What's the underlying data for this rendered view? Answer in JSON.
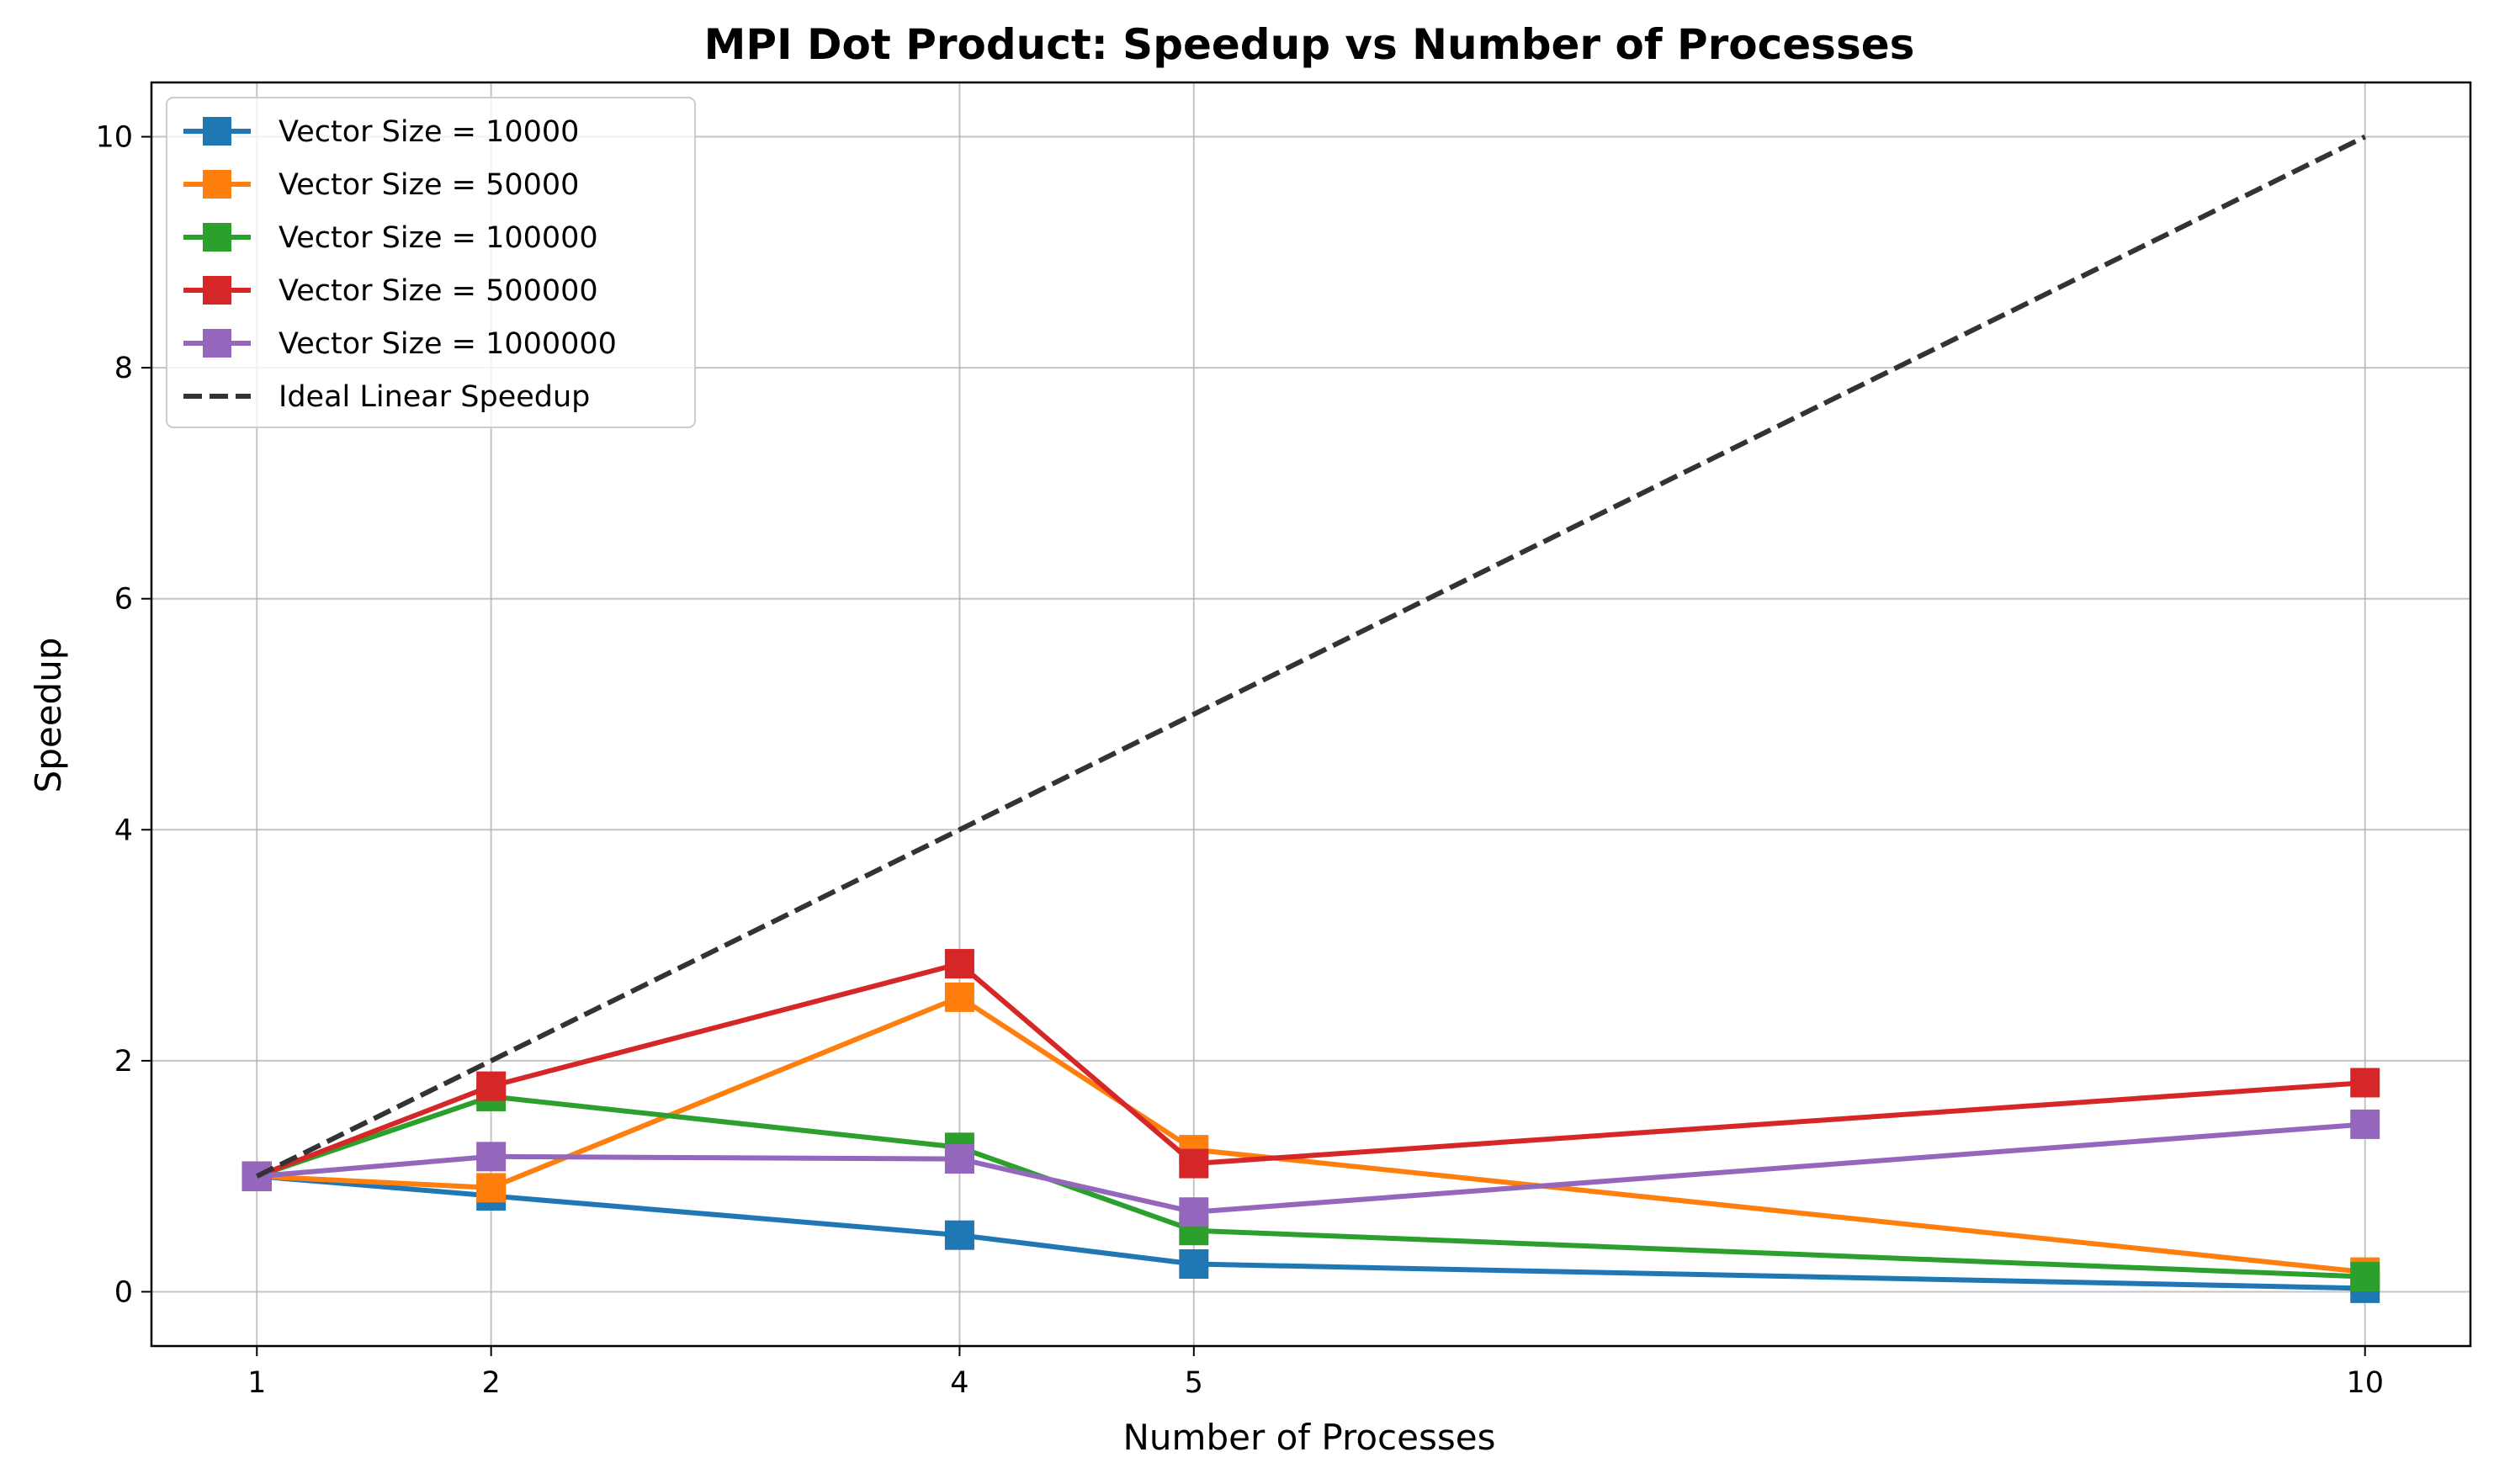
{
  "chart_data": {
    "type": "line",
    "title": "MPI Dot Product: Speedup vs Number of Processes",
    "xlabel": "Number of Processes",
    "ylabel": "Speedup",
    "x": [
      1,
      2,
      4,
      5,
      10
    ],
    "x_ticks": [
      "1",
      "2",
      "4",
      "5",
      "10"
    ],
    "y_ticks": [
      "0",
      "2",
      "4",
      "6",
      "8",
      "10"
    ],
    "xlim": [
      0.55,
      10.45
    ],
    "ylim": [
      -0.47,
      10.47
    ],
    "grid": true,
    "legend_position": "top-left",
    "series": [
      {
        "name": "Vector Size = 10000",
        "color": "#1f77b4",
        "marker": "square",
        "values": [
          1.0,
          0.83,
          0.49,
          0.24,
          0.03
        ]
      },
      {
        "name": "Vector Size = 50000",
        "color": "#ff7f0e",
        "marker": "square",
        "values": [
          1.0,
          0.9,
          2.55,
          1.23,
          0.17
        ]
      },
      {
        "name": "Vector Size = 100000",
        "color": "#2ca02c",
        "marker": "square",
        "values": [
          1.0,
          1.69,
          1.25,
          0.53,
          0.13
        ]
      },
      {
        "name": "Vector Size = 500000",
        "color": "#d62728",
        "marker": "square",
        "values": [
          1.0,
          1.78,
          2.84,
          1.11,
          1.81
        ]
      },
      {
        "name": "Vector Size = 1000000",
        "color": "#9467bd",
        "marker": "square",
        "values": [
          1.0,
          1.17,
          1.15,
          0.69,
          1.45
        ]
      },
      {
        "name": "Ideal Linear Speedup",
        "color": "#333333",
        "marker": "none",
        "dashed": true,
        "values": [
          1,
          2,
          4,
          5,
          10
        ]
      }
    ]
  }
}
